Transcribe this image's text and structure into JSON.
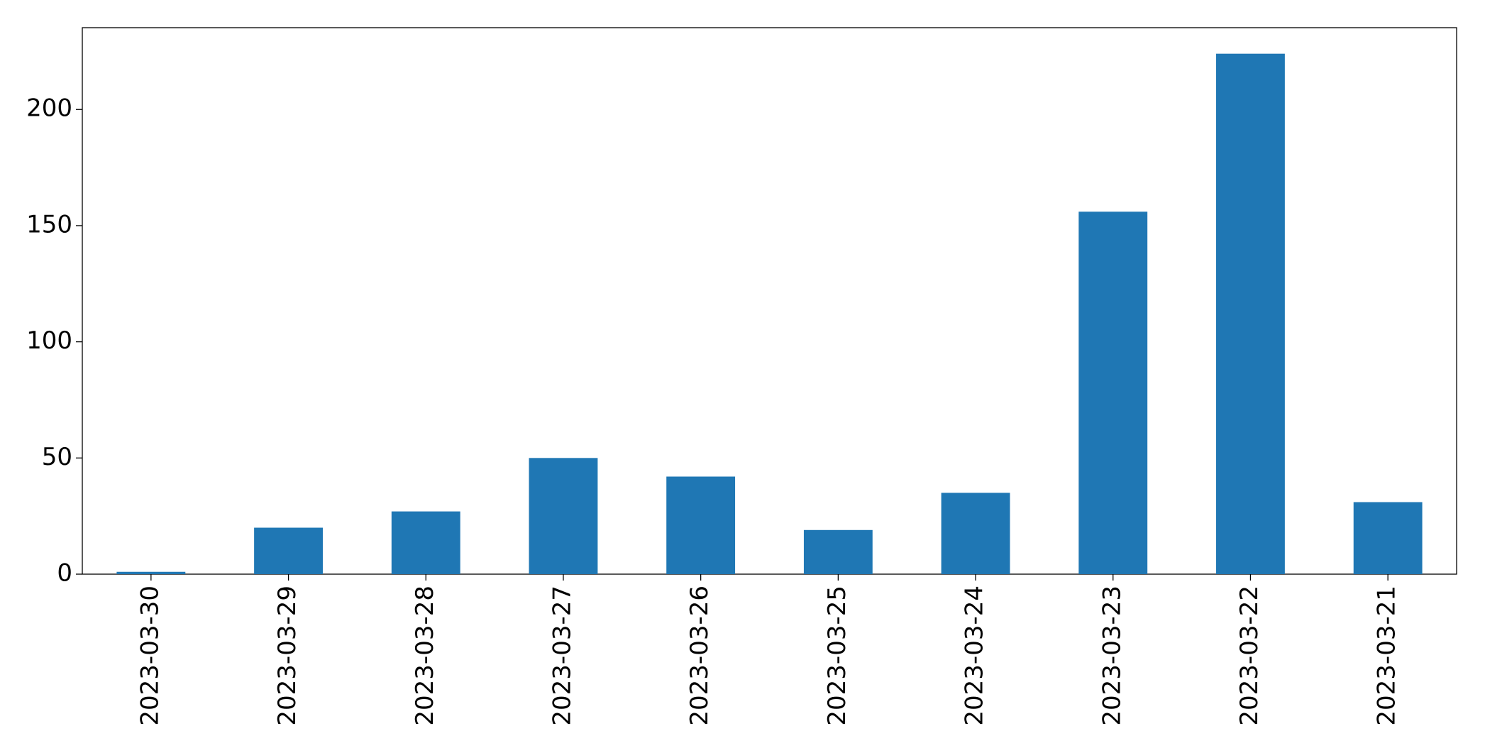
{
  "chart_data": {
    "type": "bar",
    "categories": [
      "2023-03-30",
      "2023-03-29",
      "2023-03-28",
      "2023-03-27",
      "2023-03-26",
      "2023-03-25",
      "2023-03-24",
      "2023-03-23",
      "2023-03-22",
      "2023-03-21"
    ],
    "values": [
      1,
      20,
      27,
      50,
      42,
      19,
      35,
      156,
      224,
      31
    ],
    "color": "#1f77b4",
    "ylim": [
      0,
      235.2
    ],
    "yticks": [
      0,
      50,
      100,
      150,
      200
    ],
    "grid": false
  }
}
